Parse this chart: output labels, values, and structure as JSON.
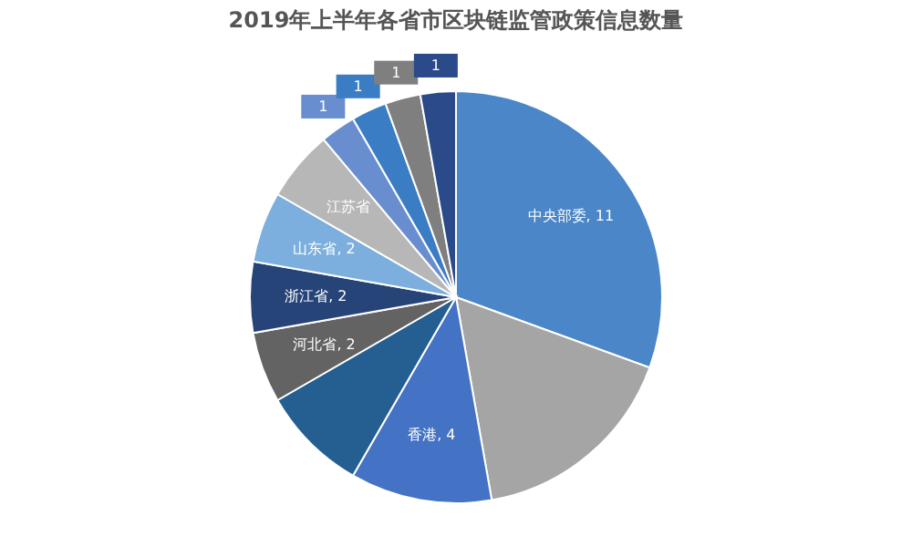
{
  "chart_data": {
    "type": "pie",
    "title": "2019年上半年各省市区块链监管政策信息数量",
    "categories": [
      "中央部委",
      null,
      "香港",
      null,
      "河北省",
      "浙江省",
      "山东省",
      "江苏省",
      null,
      null,
      null,
      null
    ],
    "values": [
      11,
      6,
      4,
      3,
      2,
      2,
      2,
      2,
      1,
      1,
      1,
      1
    ],
    "value_labels": [
      "11",
      null,
      "4",
      null,
      "2",
      "2",
      "2",
      null,
      "1",
      "1",
      "1",
      "1"
    ],
    "colors": [
      "#4a86c8",
      "#a5a5a5",
      "#4472c4",
      "#255e91",
      "#636363",
      "#264478",
      "#7cafdd",
      "#b7b7b7",
      "#698ed0",
      "#3b7dc4",
      "#7f7f7f",
      "#2a4a8a"
    ]
  }
}
